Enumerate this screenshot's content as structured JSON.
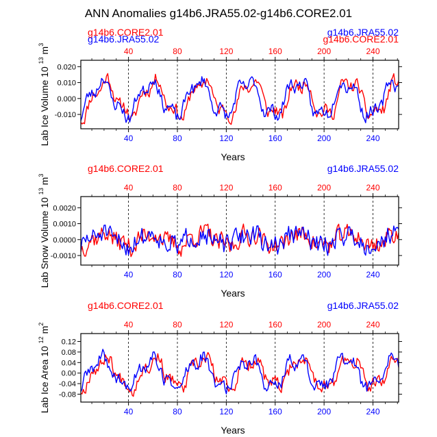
{
  "title": "ANN Anomalies g14b6.JRA55.02-g14b6.CORE2.01",
  "colors": {
    "core": "#ff0000",
    "jra": "#0000ff",
    "axis": "#000000",
    "grid": "#000000"
  },
  "chart_data": [
    {
      "type": "line",
      "ylabel": "Lab Ice Volume 10",
      "ylabel_exp": "13",
      "ylabel_unit": "m",
      "ylabel_unit_exp": "3",
      "xlabel": "Years",
      "xlim": [
        1,
        261
      ],
      "ylim": [
        -0.019,
        0.024
      ],
      "yticks": [
        -0.01,
        0.0,
        0.01,
        0.02
      ],
      "ytick_labels": [
        "-0.010",
        "0.000",
        "0.010",
        "0.020"
      ],
      "xticks": [
        40,
        80,
        120,
        160,
        200,
        240
      ],
      "xtick_labels": [
        "40",
        "80",
        "120",
        "160",
        "200",
        "240"
      ],
      "left_labels": [
        "g14b6.CORE2.01",
        "g14b6.JRA55.02"
      ],
      "right_labels": [
        "g14b6.JRA55.02",
        "g14b6.CORE2.01"
      ],
      "series": [
        {
          "name": "g14b6.CORE2.01",
          "color": "#ff0000",
          "amp": 0.014,
          "noise": 0.0055,
          "lag": 3,
          "seed": 11
        },
        {
          "name": "g14b6.JRA55.02",
          "color": "#0000ff",
          "amp": 0.014,
          "noise": 0.0055,
          "lag": 0,
          "seed": 23
        }
      ]
    },
    {
      "type": "line",
      "ylabel": "Lab Snow Volume 10",
      "ylabel_exp": "13",
      "ylabel_unit": "m",
      "ylabel_unit_exp": "3",
      "xlabel": "Years",
      "xlim": [
        1,
        261
      ],
      "ylim": [
        -0.0016,
        0.0027
      ],
      "yticks": [
        -0.001,
        0.0,
        0.001,
        0.002
      ],
      "ytick_labels": [
        "-0.0010",
        "0.0000",
        "0.0010",
        "0.0020"
      ],
      "xticks": [
        40,
        80,
        120,
        160,
        200,
        240
      ],
      "xtick_labels": [
        "40",
        "80",
        "120",
        "160",
        "200",
        "240"
      ],
      "left_labels": [
        "g14b6.CORE2.01"
      ],
      "right_labels": [
        "g14b6.JRA55.02"
      ],
      "series": [
        {
          "name": "g14b6.CORE2.01",
          "color": "#ff0000",
          "amp": 0.0005,
          "noise": 0.0009,
          "lag": 2,
          "seed": 37
        },
        {
          "name": "g14b6.JRA55.02",
          "color": "#0000ff",
          "amp": 0.0005,
          "noise": 0.0009,
          "lag": 0,
          "seed": 51
        }
      ]
    },
    {
      "type": "line",
      "ylabel": "Lab Ice Area 10",
      "ylabel_exp": "12",
      "ylabel_unit": "m",
      "ylabel_unit_exp": "2",
      "xlabel": "Years",
      "xlim": [
        1,
        261
      ],
      "ylim": [
        -0.11,
        0.15
      ],
      "yticks": [
        -0.08,
        -0.04,
        0.0,
        0.04,
        0.08,
        0.12
      ],
      "ytick_labels": [
        "-0.08",
        "-0.04",
        "0.00",
        "0.04",
        "0.08",
        "0.12"
      ],
      "xticks": [
        40,
        80,
        120,
        160,
        200,
        240
      ],
      "xtick_labels": [
        "40",
        "80",
        "120",
        "160",
        "200",
        "240"
      ],
      "left_labels": [
        "g14b6.CORE2.01"
      ],
      "right_labels": [
        "g14b6.JRA55.02"
      ],
      "series": [
        {
          "name": "g14b6.CORE2.01",
          "color": "#ff0000",
          "amp": 0.07,
          "noise": 0.035,
          "lag": 3,
          "seed": 67
        },
        {
          "name": "g14b6.JRA55.02",
          "color": "#0000ff",
          "amp": 0.07,
          "noise": 0.035,
          "lag": 0,
          "seed": 89
        }
      ]
    }
  ]
}
